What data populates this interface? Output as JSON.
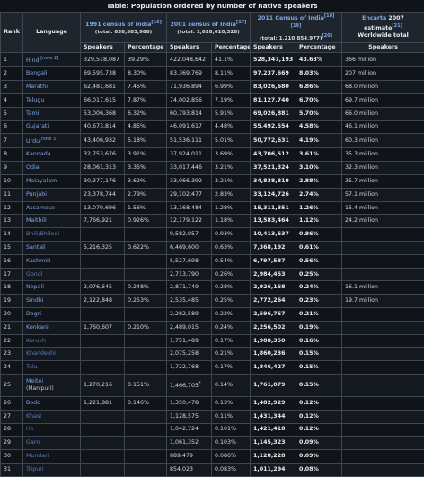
{
  "caption": "Table: Population ordered by number of native speakers",
  "headers": {
    "rank": "Rank",
    "language": "Language",
    "c1991": "1991 census of India",
    "c1991_ref": "[16]",
    "c1991_total": "(total: 838,583,988)",
    "c2001": "2001 census of India",
    "c2001_ref": "[17]",
    "c2001_total": "(total: 1,028,610,328)",
    "c2011": "2011 Census of India",
    "c2011_ref": "[18][19]",
    "c2011_total": "(total: 1,210,854,977)",
    "c2011_total_ref": "[20]",
    "encarta": "Encarta",
    "encarta_rest": " 2007 estimate",
    "encarta_ref": "[21]",
    "encarta_total": "Worldwide total",
    "speakers": "Speakers",
    "percentage": "Percentage"
  },
  "rows": [
    {
      "rank": "1",
      "lang": "Hindi",
      "note": "[note 2]",
      "s91": "329,518,087",
      "p91": "39.29%",
      "s01": "422,048,642",
      "p01": "41.1%",
      "s11": "528,347,193",
      "p11": "43.63%",
      "enc": "366 million",
      "exists": true
    },
    {
      "rank": "2",
      "lang": "Bengali",
      "s91": "69,595,738",
      "p91": "8.30%",
      "s01": "83,369,769",
      "p01": "8.11%",
      "s11": "97,237,669",
      "p11": "8.03%",
      "enc": "207 million",
      "exists": true
    },
    {
      "rank": "3",
      "lang": "Marathi",
      "s91": "62,481,681",
      "p91": "7.45%",
      "s01": "71,936,894",
      "p01": "6.99%",
      "s11": "83,026,680",
      "p11": "6.86%",
      "enc": "68.0 million",
      "exists": true
    },
    {
      "rank": "4",
      "lang": "Telugu",
      "s91": "66,017,615",
      "p91": "7.87%",
      "s01": "74,002,856",
      "p01": "7.19%",
      "s11": "81,127,740",
      "p11": "6.70%",
      "enc": "69.7 million",
      "exists": true
    },
    {
      "rank": "5",
      "lang": "Tamil",
      "s91": "53,006,368",
      "p91": "6.32%",
      "s01": "60,793,814",
      "p01": "5.91%",
      "s11": "69,026,881",
      "p11": "5.70%",
      "enc": "66.0 million",
      "exists": true
    },
    {
      "rank": "6",
      "lang": "Gujarati",
      "s91": "40,673,814",
      "p91": "4.85%",
      "s01": "46,091,617",
      "p01": "4.48%",
      "s11": "55,492,554",
      "p11": "4.58%",
      "enc": "46.1 million",
      "exists": true
    },
    {
      "rank": "7",
      "lang": "Urdu",
      "note": "[note 3]",
      "s91": "43,406,932",
      "p91": "5.18%",
      "s01": "51,536,111",
      "p01": "5.01%",
      "s11": "50,772,631",
      "p11": "4.19%",
      "enc": "60.3 million",
      "exists": true
    },
    {
      "rank": "8",
      "lang": "Kannada",
      "s91": "32,753,676",
      "p91": "3.91%",
      "s01": "37,924,011",
      "p01": "3.69%",
      "s11": "43,706,512",
      "p11": "3.61%",
      "enc": "35.3 million",
      "exists": true
    },
    {
      "rank": "9",
      "lang": "Odia",
      "s91": "28,061,313",
      "p91": "3.35%",
      "s01": "33,017,446",
      "p01": "3.21%",
      "s11": "37,521,324",
      "p11": "3.10%",
      "enc": "32.3 million",
      "exists": true
    },
    {
      "rank": "10",
      "lang": "Malayalam",
      "s91": "30,377,176",
      "p91": "3.62%",
      "s01": "33,066,392",
      "p01": "3.21%",
      "s11": "34,838,819",
      "p11": "2.88%",
      "enc": "35.7 million",
      "exists": true
    },
    {
      "rank": "11",
      "lang": "Punjabi",
      "s91": "23,378,744",
      "p91": "2.79%",
      "s01": "29,102,477",
      "p01": "2.83%",
      "s11": "33,124,726",
      "p11": "2.74%",
      "enc": "57.1 million",
      "exists": true
    },
    {
      "rank": "12",
      "lang": "Assamese",
      "s91": "13,079,696",
      "p91": "1.56%",
      "s01": "13,168,484",
      "p01": "1.28%",
      "s11": "15,311,351",
      "p11": "1.26%",
      "enc": "15.4 million",
      "exists": true
    },
    {
      "rank": "13",
      "lang": "Maithili",
      "s91": "7,766,921",
      "p91": "0.926%",
      "s01": "12,179,122",
      "p01": "1.18%",
      "s11": "13,583,464",
      "p11": "1.12%",
      "enc": "24.2 million",
      "exists": true
    },
    {
      "rank": "14",
      "lang": "Bhili/Bhilodi",
      "s91": "",
      "p91": "",
      "s01": "9,582,957",
      "p01": "0.93%",
      "s11": "10,413,637",
      "p11": "0.86%",
      "enc": "",
      "exists": false
    },
    {
      "rank": "15",
      "lang": "Santali",
      "s91": "5,216,325",
      "p91": "0.622%",
      "s01": "6,469,600",
      "p01": "0.63%",
      "s11": "7,368,192",
      "p11": "0.61%",
      "enc": "",
      "exists": true
    },
    {
      "rank": "16",
      "lang": "Kashmiri",
      "s91": "",
      "p91": "",
      "s01": "5,527,698",
      "p01": "0.54%",
      "s11": "6,797,587",
      "p11": "0.56%",
      "enc": "",
      "exists": true
    },
    {
      "rank": "17",
      "lang": "Gondi",
      "s91": "",
      "p91": "",
      "s01": "2,713,790",
      "p01": "0.26%",
      "s11": "2,984,453",
      "p11": "0.25%",
      "enc": "",
      "exists": false
    },
    {
      "rank": "18",
      "lang": "Nepali",
      "s91": "2,076,645",
      "p91": "0.248%",
      "s01": "2,871,749",
      "p01": "0.28%",
      "s11": "2,926,168",
      "p11": "0.24%",
      "enc": "16.1 million",
      "exists": true
    },
    {
      "rank": "19",
      "lang": "Sindhi",
      "s91": "2,122,848",
      "p91": "0.253%",
      "s01": "2,535,485",
      "p01": "0.25%",
      "s11": "2,772,264",
      "p11": "0.23%",
      "enc": "19.7 million",
      "exists": true
    },
    {
      "rank": "20",
      "lang": "Dogri",
      "s91": "",
      "p91": "",
      "s01": "2,282,589",
      "p01": "0.22%",
      "s11": "2,596,767",
      "p11": "0.21%",
      "enc": "",
      "exists": true
    },
    {
      "rank": "21",
      "lang": "Konkani",
      "s91": "1,760,607",
      "p91": "0.210%",
      "s01": "2,489,015",
      "p01": "0.24%",
      "s11": "2,256,502",
      "p11": "0.19%",
      "enc": "",
      "exists": true
    },
    {
      "rank": "22",
      "lang": "Kurukh",
      "s91": "",
      "p91": "",
      "s01": "1,751,489",
      "p01": "0.17%",
      "s11": "1,988,350",
      "p11": "0.16%",
      "enc": "",
      "exists": false
    },
    {
      "rank": "23",
      "lang": "Khandeshi",
      "s91": "",
      "p91": "",
      "s01": "2,075,258",
      "p01": "0.21%",
      "s11": "1,860,236",
      "p11": "0.15%",
      "enc": "",
      "exists": false
    },
    {
      "rank": "24",
      "lang": "Tulu",
      "s91": "",
      "p91": "",
      "s01": "1,722,768",
      "p01": "0.17%",
      "s11": "1,846,427",
      "p11": "0.15%",
      "enc": "",
      "exists": false
    },
    {
      "rank": "25",
      "lang": "Meitei",
      "sub": "(Manipuri)",
      "s91": "1,270,216",
      "p91": "0.151%",
      "s01": "1,466,705",
      "s01_mark": "*",
      "p01": "0.14%",
      "s11": "1,761,079",
      "p11": "0.15%",
      "enc": "",
      "exists": true,
      "tall": true
    },
    {
      "rank": "26",
      "lang": "Bodo",
      "s91": "1,221,881",
      "p91": "0.146%",
      "s01": "1,350,478",
      "p01": "0.13%",
      "s11": "1,482,929",
      "p11": "0.12%",
      "enc": "",
      "exists": true
    },
    {
      "rank": "27",
      "lang": "Khasi",
      "s91": "",
      "p91": "",
      "s01": "1,128,575",
      "p01": "0.11%",
      "s11": "1,431,344",
      "p11": "0.12%",
      "enc": "",
      "exists": false
    },
    {
      "rank": "28",
      "lang": "Ho",
      "s91": "",
      "p91": "",
      "s01": "1,042,724",
      "p01": "0.101%",
      "s11": "1,421,418",
      "p11": "0.12%",
      "enc": "",
      "exists": false
    },
    {
      "rank": "29",
      "lang": "Garo",
      "s91": "",
      "p91": "",
      "s01": "1,061,352",
      "p01": "0.103%",
      "s11": "1,145,323",
      "p11": "0.09%",
      "enc": "",
      "exists": false
    },
    {
      "rank": "30",
      "lang": "Mundari",
      "s91": "",
      "p91": "",
      "s01": "889,479",
      "p01": "0.086%",
      "s11": "1,128,228",
      "p11": "0.09%",
      "enc": "",
      "exists": false
    },
    {
      "rank": "31",
      "lang": "Tripuri",
      "s91": "",
      "p91": "",
      "s01": "854,023",
      "p01": "0.083%",
      "s11": "1,011,294",
      "p11": "0.08%",
      "enc": "",
      "exists": false
    }
  ]
}
